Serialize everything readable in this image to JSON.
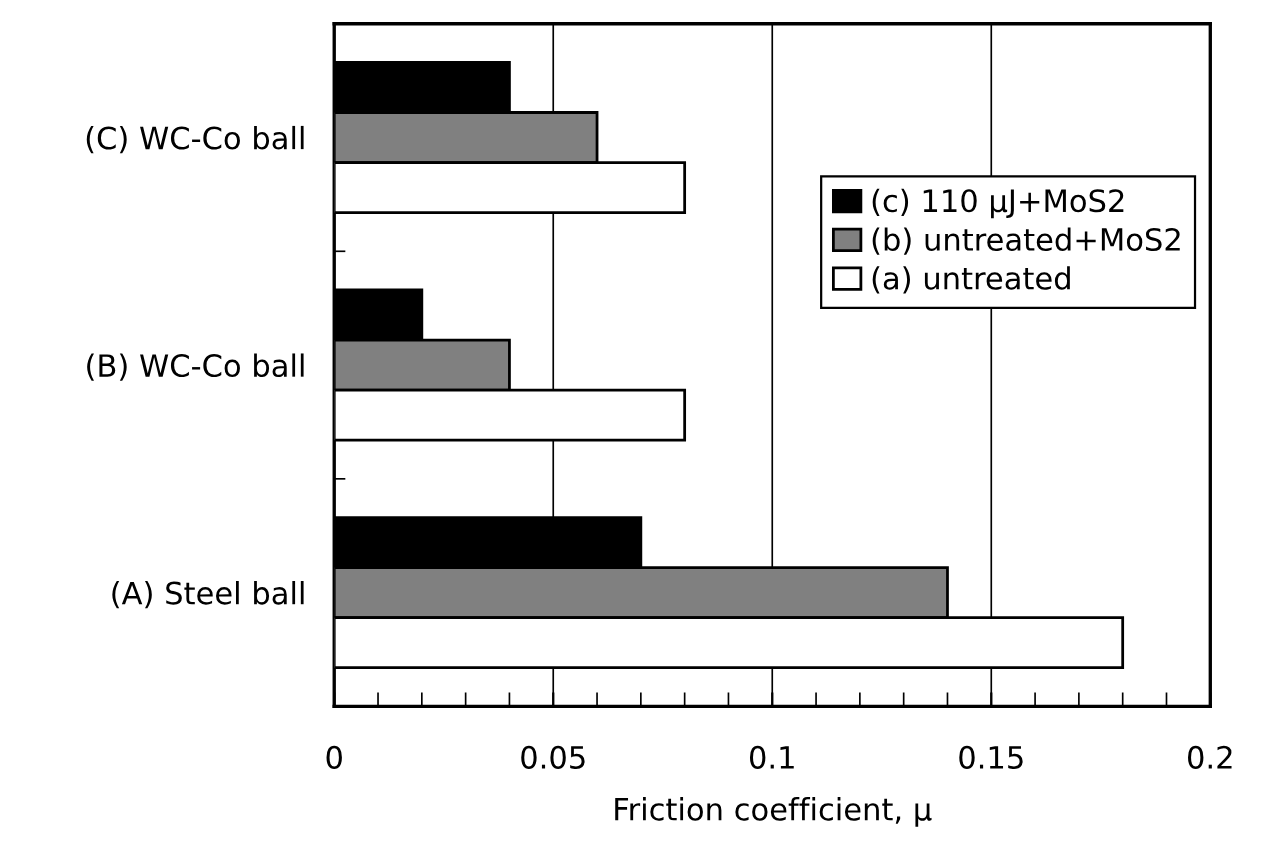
{
  "chart_data": {
    "type": "bar",
    "orientation": "horizontal",
    "xlabel": "Friction coefficient, μ",
    "categories": [
      "(C) WC-Co ball",
      "(B) WC-Co ball",
      "(A) Steel ball"
    ],
    "series": [
      {
        "name": "(c) 110 μJ+MoS2",
        "color": "#000000",
        "values": [
          0.04,
          0.02,
          0.07
        ]
      },
      {
        "name": "(b) untreated+MoS2",
        "color": "#808080",
        "values": [
          0.06,
          0.04,
          0.14
        ]
      },
      {
        "name": "(a) untreated",
        "color": "#ffffff",
        "values": [
          0.08,
          0.08,
          0.18
        ]
      }
    ],
    "xlim": [
      0,
      0.2
    ],
    "xticks": [
      0,
      0.05,
      0.1,
      0.15,
      0.2
    ],
    "grid": "x",
    "legend": "right"
  }
}
